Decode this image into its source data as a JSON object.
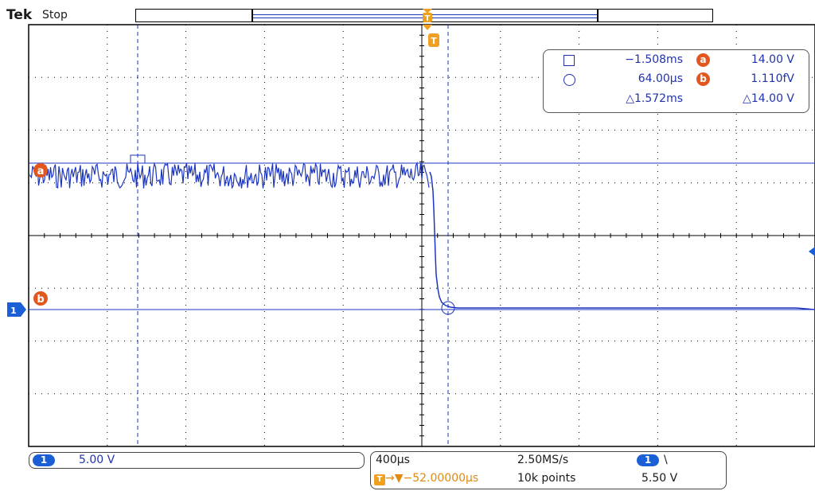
{
  "header": {
    "brand": "Tek",
    "run_state": "Stop"
  },
  "trigger": {
    "badge": "T"
  },
  "cursors": {
    "a_label": "a",
    "b_label": "b",
    "time_a": "−1.508ms",
    "time_b": "64.00µs",
    "delta_time": "△1.572ms",
    "volt_a": "14.00 V",
    "volt_b": "1.110fV",
    "delta_volt": "△14.00 V"
  },
  "channel": {
    "number": "1",
    "scale": "5.00 V"
  },
  "horizontal": {
    "timebase": "400µs",
    "sample_rate": "2.50MS/s",
    "trigger_position": "→▼−52.00000µs",
    "record_length": "10k points",
    "trigger_channel": "1",
    "trigger_slope": "\\",
    "trigger_level": "5.50 V"
  },
  "colors": {
    "trace": "#1c35c0",
    "cursor_badge": "#e2571e",
    "trigger": "#f0a020",
    "graticule": "#000000"
  },
  "icons": [
    "square-cursor-icon",
    "circle-cursor-icon",
    "trigger-marker-icon",
    "channel-ground-marker-icon",
    "slope-falling-icon"
  ]
}
